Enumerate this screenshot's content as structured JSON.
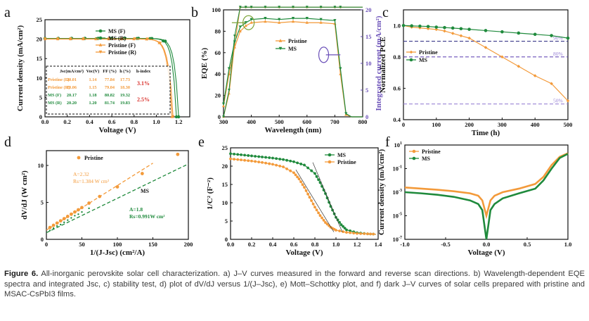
{
  "caption": {
    "label": "Figure 6.",
    "text": "All-inorganic perovskite solar cell characterization. a) J–V curves measured in the forward and reverse scan directions. b) Wavelength-dependent EQE spectra and integrated Jsc, c) stability test, d) plot of dV/dJ versus 1/(J–Jsc), e) Mott–Schottky plot, and f) dark J–V curves of solar cells prepared with pristine and MSAC-CsPbI3 films."
  },
  "colors": {
    "orange": "#F39A3A",
    "green": "#1F8A3C",
    "purple": "#6A4FB8",
    "red": "#D9302B"
  },
  "chart_data": [
    {
      "panel": "a",
      "type": "line",
      "xlabel": "Voltage (V)",
      "ylabel": "Current density (mA/cm²)",
      "xlim": [
        0,
        1.3
      ],
      "ylim": [
        0,
        25
      ],
      "xticks": [
        "0.0",
        "0.2",
        "0.4",
        "0.6",
        "0.8",
        "1.0",
        "1.2"
      ],
      "yticks": [
        "0",
        "5",
        "10",
        "15",
        "20",
        "25"
      ],
      "legend": [
        "MS (F)",
        "MS (R)",
        "Pristine (F)",
        "Pristine (R)"
      ],
      "series": [
        {
          "name": "MS (F)",
          "jsc": 20.17,
          "voc": 1.18
        },
        {
          "name": "MS (R)",
          "jsc": 20.2,
          "voc": 1.2
        },
        {
          "name": "Pristine (F)",
          "jsc": 20.01,
          "voc": 1.14
        },
        {
          "name": "Pristine (R)",
          "jsc": 20.06,
          "voc": 1.15
        }
      ],
      "table": {
        "header": [
          "Jsc(mA/cm²)",
          "Voc(V)",
          "FF (%)",
          "h (%)",
          "h-index"
        ],
        "rows": [
          {
            "label": "Pristine (F)",
            "values": [
              "20.01",
              "1.14",
              "77.84",
              "17.73"
            ]
          },
          {
            "label": "Pristine (R)",
            "values": [
              "20.06",
              "1.15",
              "79.04",
              "18.30"
            ]
          },
          {
            "label": "MS (F)",
            "values": [
              "20.17",
              "1.18",
              "80.82",
              "19.32"
            ]
          },
          {
            "label": "MS (R)",
            "values": [
              "20.20",
              "1.20",
              "81.74",
              "19.83"
            ]
          }
        ],
        "hindex": [
          "3.1%",
          "2.5%"
        ]
      }
    },
    {
      "panel": "b",
      "type": "line",
      "xlabel": "Wavelength (nm)",
      "ylabel": "EQE (%)",
      "ylabel2": "Integrated current (mA/cm²)",
      "xlim": [
        300,
        800
      ],
      "ylim": [
        0,
        100
      ],
      "y2lim": [
        0,
        20
      ],
      "xticks": [
        "300",
        "400",
        "500",
        "600",
        "700",
        "800"
      ],
      "yticks": [
        "0",
        "20",
        "40",
        "60",
        "80",
        "100"
      ],
      "y2ticks": [
        "0",
        "5",
        "10",
        "15",
        "20"
      ],
      "legend": [
        "Pristine",
        "MS"
      ],
      "x": [
        300,
        320,
        340,
        360,
        380,
        400,
        450,
        500,
        550,
        600,
        650,
        700,
        720,
        740,
        760,
        780,
        800
      ],
      "series": [
        {
          "name": "Pristine",
          "values": [
            10,
            40,
            65,
            80,
            85,
            88,
            89,
            88,
            89,
            88,
            88,
            87,
            40,
            2,
            0,
            0,
            0
          ]
        },
        {
          "name": "MS",
          "values": [
            12,
            45,
            70,
            84,
            88,
            91,
            92,
            91,
            92,
            92,
            91,
            90,
            45,
            3,
            0,
            0,
            0
          ]
        }
      ]
    },
    {
      "panel": "c",
      "type": "line",
      "xlabel": "Time (h)",
      "ylabel": "Normalized PCE",
      "xlim": [
        0,
        500
      ],
      "ylim": [
        0.4,
        1.1
      ],
      "xticks": [
        "0",
        "100",
        "200",
        "300",
        "400",
        "500"
      ],
      "yticks": [
        "0.4",
        "0.6",
        "0.8",
        "1.0"
      ],
      "legend": [
        "Pristine",
        "MS"
      ],
      "reference_lines": [
        {
          "value": 0.9,
          "label": "90%"
        },
        {
          "value": 0.8,
          "label": "80%"
        },
        {
          "value": 0.5,
          "label": "50%"
        }
      ],
      "series": [
        {
          "name": "Pristine",
          "x": [
            0,
            25,
            50,
            75,
            100,
            125,
            150,
            175,
            200,
            250,
            300,
            350,
            400,
            450,
            500
          ],
          "values": [
            1.0,
            0.99,
            0.985,
            0.98,
            0.975,
            0.965,
            0.95,
            0.935,
            0.92,
            0.86,
            0.8,
            0.74,
            0.68,
            0.63,
            0.52
          ]
        },
        {
          "name": "MS",
          "x": [
            0,
            25,
            50,
            75,
            100,
            125,
            150,
            175,
            200,
            250,
            300,
            350,
            400,
            450,
            500
          ],
          "values": [
            1.0,
            0.998,
            0.996,
            0.994,
            0.99,
            0.987,
            0.984,
            0.98,
            0.976,
            0.968,
            0.96,
            0.952,
            0.944,
            0.936,
            0.92
          ]
        }
      ]
    },
    {
      "panel": "d",
      "type": "scatter",
      "xlabel": "1/(J-Jsc) (cm²/A)",
      "ylabel": "dV/dJ (W cm²)",
      "xlim": [
        0,
        200
      ],
      "ylim": [
        0,
        12
      ],
      "xticks": [
        "0",
        "50",
        "100",
        "150",
        "200"
      ],
      "yticks": [
        "0",
        "5",
        "10"
      ],
      "legend": [
        "Pristine",
        "MS"
      ],
      "annotations": {
        "pristine": [
          "A=2.32",
          "Rs=1.384 W cm²"
        ],
        "ms": [
          "A=1.8",
          "Rs=0.991W cm²"
        ]
      },
      "series": [
        {
          "name": "Pristine",
          "x": [
            5,
            10,
            15,
            20,
            25,
            30,
            35,
            40,
            45,
            50,
            60,
            75,
            100,
            135,
            185
          ],
          "values": [
            1.6,
            1.9,
            2.2,
            2.5,
            2.8,
            3.1,
            3.4,
            3.7,
            4.0,
            4.3,
            4.9,
            5.8,
            7.1,
            8.9,
            11.5
          ]
        },
        {
          "name": "MS",
          "x": [
            5,
            10,
            15,
            20,
            25,
            30,
            35,
            40,
            45,
            50,
            60
          ],
          "values": [
            1.2,
            1.5,
            1.8,
            2.0,
            2.3,
            2.6,
            2.9,
            3.2,
            3.4,
            3.7,
            4.2
          ]
        }
      ]
    },
    {
      "panel": "e",
      "type": "line",
      "xlabel": "Voltage (V)",
      "ylabel": "1/C² (F⁻²)",
      "xlim": [
        0,
        1.4
      ],
      "ylim": [
        0,
        25
      ],
      "xticks": [
        "0.0",
        "0.2",
        "0.4",
        "0.6",
        "0.8",
        "1.0",
        "1.2",
        "1.4"
      ],
      "yticks": [
        "0",
        "5",
        "10",
        "15",
        "20",
        "25"
      ],
      "legend": [
        "MS",
        "Pristine"
      ],
      "series": [
        {
          "name": "MS",
          "x": [
            0,
            0.1,
            0.2,
            0.3,
            0.4,
            0.5,
            0.6,
            0.7,
            0.8,
            0.85,
            0.9,
            0.95,
            1.0,
            1.05,
            1.1,
            1.2,
            1.3,
            1.38
          ],
          "values": [
            23.4,
            23.1,
            22.8,
            22.5,
            22.2,
            21.8,
            21.2,
            20.3,
            18.0,
            15.5,
            12.5,
            9.0,
            6.0,
            4.0,
            2.6,
            1.8,
            1.5,
            1.4
          ]
        },
        {
          "name": "Pristine",
          "x": [
            0,
            0.1,
            0.2,
            0.3,
            0.4,
            0.5,
            0.6,
            0.65,
            0.7,
            0.75,
            0.8,
            0.85,
            0.9,
            0.95,
            1.0,
            1.1,
            1.2,
            1.3,
            1.38
          ],
          "values": [
            22.0,
            21.7,
            21.4,
            21.0,
            20.5,
            19.8,
            18.2,
            16.5,
            14.2,
            11.5,
            8.8,
            6.5,
            4.6,
            3.3,
            2.5,
            1.9,
            1.6,
            1.5,
            1.4
          ]
        }
      ]
    },
    {
      "panel": "f",
      "type": "line",
      "xlabel": "Voltage (V)",
      "ylabel": "Current density (mA/cm²)",
      "xlim": [
        -1.0,
        1.0
      ],
      "ylim_log10": [
        -7,
        1
      ],
      "yscale": "log",
      "xticks": [
        "-1.0",
        "-0.5",
        "0.0",
        "0.5",
        "1.0"
      ],
      "yticks": [
        "10^-7",
        "10^-5",
        "10^-3",
        "10^-1",
        "10^1"
      ],
      "legend": [
        "Pristine",
        "MS"
      ],
      "series": [
        {
          "name": "Pristine",
          "x": [
            -1.0,
            -0.8,
            -0.6,
            -0.4,
            -0.2,
            -0.1,
            -0.05,
            0.0,
            0.05,
            0.1,
            0.2,
            0.4,
            0.6,
            0.7,
            0.8,
            0.9,
            1.0
          ],
          "values": [
            0.0025,
            0.002,
            0.0016,
            0.0012,
            0.0008,
            0.0005,
            0.0002,
            1e-05,
            0.0002,
            0.0005,
            0.001,
            0.002,
            0.005,
            0.02,
            0.2,
            1.0,
            2.0
          ]
        },
        {
          "name": "MS",
          "x": [
            -1.0,
            -0.8,
            -0.6,
            -0.4,
            -0.2,
            -0.1,
            -0.05,
            0.0,
            0.05,
            0.1,
            0.2,
            0.4,
            0.6,
            0.7,
            0.8,
            0.9,
            1.0
          ],
          "values": [
            0.001,
            0.0008,
            0.0006,
            0.0004,
            0.0002,
            0.0001,
            3e-05,
            1e-07,
            3e-05,
            0.0001,
            0.0003,
            0.0008,
            0.002,
            0.01,
            0.1,
            0.8,
            1.8
          ]
        }
      ]
    }
  ]
}
